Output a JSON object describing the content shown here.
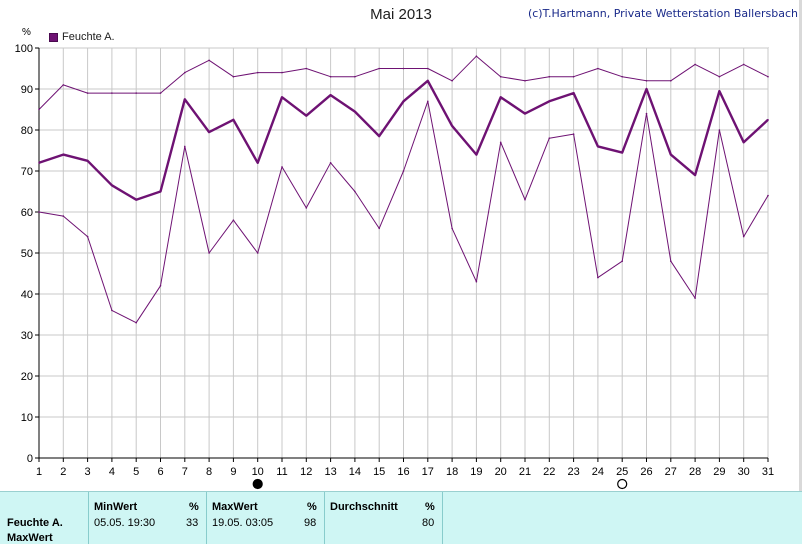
{
  "header": {
    "title": "Mai 2013",
    "copyright": "(c)T.Hartmann, Private Wetterstation Ballersbach",
    "unit": "%"
  },
  "colors": {
    "series": "#6e1273",
    "grid": "#c8c8c8",
    "stats_bg": "#cff6f4"
  },
  "chart_data": {
    "type": "line",
    "x": [
      1,
      2,
      3,
      4,
      5,
      6,
      7,
      8,
      9,
      10,
      11,
      12,
      13,
      14,
      15,
      16,
      17,
      18,
      19,
      20,
      21,
      22,
      23,
      24,
      25,
      26,
      27,
      28,
      29,
      30,
      31
    ],
    "ylim": [
      0,
      100
    ],
    "yticks": [
      0,
      10,
      20,
      30,
      40,
      50,
      60,
      70,
      80,
      90,
      100
    ],
    "grid": true,
    "legend": [
      "Feuchte A."
    ],
    "series": [
      {
        "name": "Feuchte A.",
        "role": "mean",
        "values": [
          72,
          74,
          72.5,
          66.5,
          63,
          65,
          87.5,
          79.5,
          82.5,
          72,
          88,
          83.5,
          88.5,
          84.5,
          78.5,
          87,
          92,
          81,
          74,
          88,
          84,
          87,
          89,
          76,
          74.5,
          90,
          74,
          69,
          89.5,
          77,
          82.5
        ]
      },
      {
        "role": "max",
        "values": [
          85,
          91,
          89,
          89,
          89,
          89,
          94,
          97,
          93,
          94,
          94,
          95,
          93,
          93,
          95,
          95,
          95,
          92,
          98,
          93,
          92,
          93,
          93,
          95,
          93,
          92,
          92,
          96,
          93,
          96,
          93
        ]
      },
      {
        "role": "min",
        "values": [
          60,
          59,
          54,
          36,
          33,
          42,
          76,
          50,
          58,
          50,
          71,
          61,
          72,
          65,
          56,
          70,
          87,
          56,
          43,
          77,
          63,
          78,
          79,
          44,
          48,
          84,
          48,
          39,
          80,
          54,
          64
        ]
      }
    ],
    "markers": [
      {
        "x": 10,
        "symbol": "filled-circle"
      },
      {
        "x": 25,
        "symbol": "open-circle"
      }
    ]
  },
  "stats": {
    "row_label": "Feuchte A.",
    "row2_label": "MaxWert",
    "min": {
      "header": "MinWert",
      "unit": "%",
      "datetime": "05.05.  19:30",
      "value": "33"
    },
    "max": {
      "header": "MaxWert",
      "unit": "%",
      "datetime": "19.05.  03:05",
      "value": "98"
    },
    "avg": {
      "header": "Durchschnitt",
      "unit": "%",
      "value": "80"
    }
  }
}
